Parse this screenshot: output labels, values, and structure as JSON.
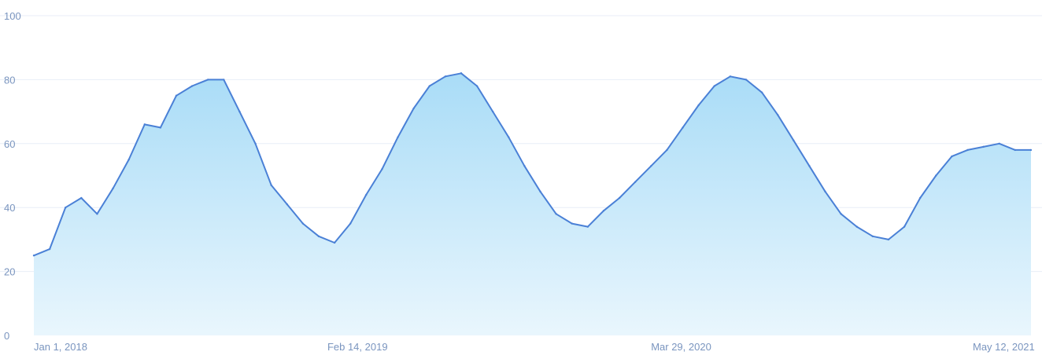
{
  "chart_data": {
    "type": "area",
    "title": "",
    "xlabel": "",
    "ylabel": "",
    "ylim": [
      0,
      100
    ],
    "xlim": [
      "2018-01-01",
      "2021-06-22"
    ],
    "grid": true,
    "y_ticks": [
      0,
      20,
      40,
      60,
      80,
      100
    ],
    "y_tick_labels": [
      "0",
      "20",
      "40",
      "60",
      "80",
      "100"
    ],
    "x_ticks": [
      "2018-01-01",
      "2019-02-14",
      "2020-03-29",
      "2021-05-12"
    ],
    "x_tick_labels": [
      "Jan 1, 2018",
      "Feb 14, 2019",
      "Mar 29, 2020",
      "May 12, 2021"
    ],
    "colors": {
      "line": "#4a80d6",
      "fill_top": "#a9dcf7",
      "fill_bottom": "#e9f6fd",
      "grid": "#e8eef7",
      "tick_text": "#7a95bf"
    },
    "series": [
      {
        "x": [
          "2018-01-01",
          "2018-01-21",
          "2018-02-10",
          "2018-03-02",
          "2018-03-22",
          "2018-04-11",
          "2018-05-01",
          "2018-05-21",
          "2018-06-10",
          "2018-06-30",
          "2018-07-20",
          "2018-08-09",
          "2018-08-29",
          "2018-09-18",
          "2018-10-08",
          "2018-10-28",
          "2018-11-17",
          "2018-12-07",
          "2018-12-27",
          "2019-01-16",
          "2019-02-05",
          "2019-02-25",
          "2019-03-17",
          "2019-04-06",
          "2019-04-26",
          "2019-05-16",
          "2019-06-05",
          "2019-06-25",
          "2019-07-15",
          "2019-08-04",
          "2019-08-24",
          "2019-09-13",
          "2019-10-03",
          "2019-10-23",
          "2019-11-12",
          "2019-12-02",
          "2019-12-22",
          "2020-01-11",
          "2020-01-31",
          "2020-02-20",
          "2020-03-11",
          "2020-03-31",
          "2020-04-20",
          "2020-05-10",
          "2020-05-30",
          "2020-06-19",
          "2020-07-09",
          "2020-07-29",
          "2020-08-18",
          "2020-09-07",
          "2020-09-27",
          "2020-10-17",
          "2020-11-06",
          "2020-11-26",
          "2020-12-16",
          "2021-01-05",
          "2021-01-25",
          "2021-02-14",
          "2021-03-06",
          "2021-03-26",
          "2021-04-15",
          "2021-05-05",
          "2021-05-25",
          "2021-06-14"
        ],
        "values": [
          25,
          27,
          40,
          43,
          38,
          46,
          55,
          66,
          65,
          75,
          78,
          80,
          80,
          70,
          60,
          47,
          41,
          35,
          31,
          29,
          35,
          44,
          52,
          62,
          71,
          78,
          81,
          82,
          78,
          70,
          62,
          53,
          45,
          38,
          35,
          34,
          39,
          43,
          48,
          53,
          58,
          65,
          72,
          78,
          81,
          80,
          76,
          69,
          61,
          53,
          45,
          38,
          34,
          31,
          30,
          34,
          43,
          50,
          56,
          58,
          59,
          60,
          58,
          58
        ]
      }
    ]
  }
}
